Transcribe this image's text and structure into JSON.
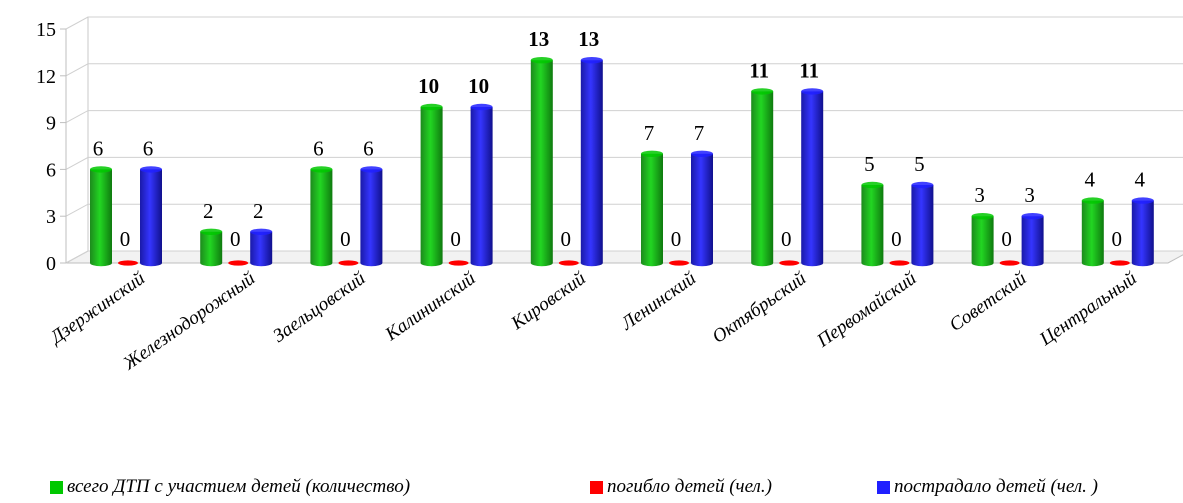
{
  "chart_data": {
    "type": "bar",
    "categories": [
      "Дзержинский",
      "Железнодорожный",
      "Заельцовский",
      "Калининский",
      "Кировский",
      "Ленинский",
      "Октябрьский",
      "Первомайский",
      "Советский",
      "Центральный"
    ],
    "series": [
      {
        "name": "всего ДТП с участием детей (количество)",
        "color": "#00c800",
        "values": [
          6,
          2,
          6,
          10,
          13,
          7,
          11,
          5,
          3,
          4
        ]
      },
      {
        "name": "погибло детей (чел.)",
        "color": "#ff0000",
        "values": [
          0,
          0,
          0,
          0,
          0,
          0,
          0,
          0,
          0,
          0
        ]
      },
      {
        "name": "пострадало детей (чел. )",
        "color": "#2020ff",
        "values": [
          6,
          2,
          6,
          10,
          13,
          7,
          11,
          5,
          3,
          4
        ]
      }
    ],
    "yticks": [
      "0",
      "3",
      "6",
      "9",
      "12",
      "15"
    ],
    "ylim": [
      0,
      15
    ],
    "grid": true,
    "legend_position": "bottom",
    "bold_label_categories": [
      "Калининский",
      "Кировский",
      "Октябрьский"
    ]
  }
}
